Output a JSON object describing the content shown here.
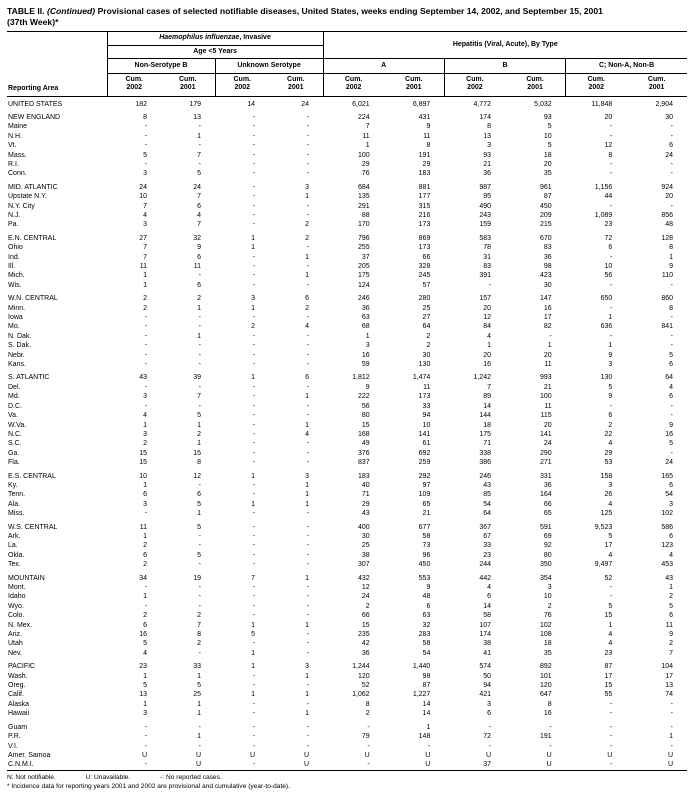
{
  "title": {
    "prefix": "TABLE II.",
    "continued": "(Continued)",
    "rest": "Provisional cases of selected notifiable diseases, United States, weeks ending September 14, 2002, and September 15, 2001",
    "week": "(37th Week)*"
  },
  "header": {
    "reporting_area": "Reporting Area",
    "group1_italic": "Haemophilus influenzae",
    "group1_rest": ", Invasive",
    "group1_sub": "Age <5 Years",
    "group2": "Hepatitis (Viral, Acute), By Type",
    "subgroups": [
      "Non-Serotype B",
      "Unknown Serotype",
      "A",
      "B",
      "C; Non-A, Non-B"
    ],
    "cum_label": "Cum.",
    "years": [
      "2002",
      "2001"
    ]
  },
  "rows": [
    {
      "area": "UNITED STATES",
      "values": [
        "182",
        "179",
        "14",
        "24",
        "6,021",
        "6,897",
        "4,772",
        "5,032",
        "11,848",
        "2,904"
      ]
    },
    {
      "area": "NEW ENGLAND",
      "gap_before": true,
      "values": [
        "8",
        "13",
        "-",
        "-",
        "224",
        "431",
        "174",
        "93",
        "20",
        "30"
      ]
    },
    {
      "area": "Maine",
      "values": [
        "-",
        "-",
        "-",
        "-",
        "7",
        "9",
        "8",
        "5",
        "-",
        "-"
      ]
    },
    {
      "area": "N.H.",
      "values": [
        "-",
        "1",
        "-",
        "-",
        "11",
        "11",
        "13",
        "10",
        "-",
        "-"
      ]
    },
    {
      "area": "Vt.",
      "values": [
        "-",
        "-",
        "-",
        "-",
        "1",
        "8",
        "3",
        "5",
        "12",
        "6"
      ]
    },
    {
      "area": "Mass.",
      "values": [
        "5",
        "7",
        "-",
        "-",
        "100",
        "191",
        "93",
        "18",
        "8",
        "24"
      ]
    },
    {
      "area": "R.I.",
      "values": [
        "-",
        "-",
        "-",
        "-",
        "29",
        "29",
        "21",
        "20",
        "-",
        "-"
      ]
    },
    {
      "area": "Conn.",
      "values": [
        "3",
        "5",
        "-",
        "-",
        "76",
        "183",
        "36",
        "35",
        "-",
        "-"
      ]
    },
    {
      "area": "MID. ATLANTIC",
      "gap_before": true,
      "values": [
        "24",
        "24",
        "-",
        "3",
        "684",
        "881",
        "987",
        "961",
        "1,156",
        "924"
      ]
    },
    {
      "area": "Upstate N.Y.",
      "values": [
        "10",
        "7",
        "-",
        "1",
        "135",
        "177",
        "95",
        "87",
        "44",
        "20"
      ]
    },
    {
      "area": "N.Y. City",
      "values": [
        "7",
        "6",
        "-",
        "-",
        "291",
        "315",
        "490",
        "450",
        "-",
        "-"
      ]
    },
    {
      "area": "N.J.",
      "values": [
        "4",
        "4",
        "-",
        "-",
        "88",
        "216",
        "243",
        "209",
        "1,089",
        "856"
      ]
    },
    {
      "area": "Pa.",
      "values": [
        "3",
        "7",
        "-",
        "2",
        "170",
        "173",
        "159",
        "215",
        "23",
        "48"
      ]
    },
    {
      "area": "E.N. CENTRAL",
      "gap_before": true,
      "values": [
        "27",
        "32",
        "1",
        "2",
        "796",
        "869",
        "583",
        "670",
        "72",
        "128"
      ]
    },
    {
      "area": "Ohio",
      "values": [
        "7",
        "9",
        "1",
        "-",
        "255",
        "173",
        "78",
        "83",
        "6",
        "8"
      ]
    },
    {
      "area": "Ind.",
      "values": [
        "7",
        "6",
        "-",
        "1",
        "37",
        "66",
        "31",
        "36",
        "-",
        "1"
      ]
    },
    {
      "area": "Ill.",
      "values": [
        "11",
        "11",
        "-",
        "-",
        "205",
        "328",
        "83",
        "98",
        "10",
        "9"
      ]
    },
    {
      "area": "Mich.",
      "values": [
        "1",
        "-",
        "-",
        "1",
        "175",
        "245",
        "391",
        "423",
        "56",
        "110"
      ]
    },
    {
      "area": "Wis.",
      "values": [
        "1",
        "6",
        "-",
        "-",
        "124",
        "57",
        "-",
        "30",
        "-",
        "-"
      ]
    },
    {
      "area": "W.N. CENTRAL",
      "gap_before": true,
      "values": [
        "2",
        "2",
        "3",
        "6",
        "246",
        "280",
        "157",
        "147",
        "650",
        "860"
      ]
    },
    {
      "area": "Minn.",
      "values": [
        "2",
        "1",
        "1",
        "2",
        "36",
        "25",
        "20",
        "16",
        "-",
        "8"
      ]
    },
    {
      "area": "Iowa",
      "values": [
        "-",
        "-",
        "-",
        "-",
        "63",
        "27",
        "12",
        "17",
        "1",
        "-"
      ]
    },
    {
      "area": "Mo.",
      "values": [
        "-",
        "-",
        "2",
        "4",
        "68",
        "64",
        "84",
        "82",
        "636",
        "841"
      ]
    },
    {
      "area": "N. Dak.",
      "values": [
        "-",
        "1",
        "-",
        "-",
        "1",
        "2",
        "4",
        "-",
        "-",
        "-"
      ]
    },
    {
      "area": "S. Dak.",
      "values": [
        "-",
        "-",
        "-",
        "-",
        "3",
        "2",
        "1",
        "1",
        "1",
        "-"
      ]
    },
    {
      "area": "Nebr.",
      "values": [
        "-",
        "-",
        "-",
        "-",
        "16",
        "30",
        "20",
        "20",
        "9",
        "5"
      ]
    },
    {
      "area": "Kans.",
      "values": [
        "-",
        "-",
        "-",
        "-",
        "59",
        "130",
        "16",
        "11",
        "3",
        "6"
      ]
    },
    {
      "area": "S. ATLANTIC",
      "gap_before": true,
      "values": [
        "43",
        "39",
        "1",
        "6",
        "1,812",
        "1,474",
        "1,242",
        "993",
        "130",
        "64"
      ]
    },
    {
      "area": "Del.",
      "values": [
        "-",
        "-",
        "-",
        "-",
        "9",
        "11",
        "7",
        "21",
        "5",
        "4"
      ]
    },
    {
      "area": "Md.",
      "values": [
        "3",
        "7",
        "-",
        "1",
        "222",
        "173",
        "89",
        "100",
        "9",
        "6"
      ]
    },
    {
      "area": "D.C.",
      "values": [
        "-",
        "-",
        "-",
        "-",
        "56",
        "33",
        "14",
        "11",
        "-",
        "-"
      ]
    },
    {
      "area": "Va.",
      "values": [
        "4",
        "5",
        "-",
        "-",
        "80",
        "94",
        "144",
        "115",
        "6",
        "-"
      ]
    },
    {
      "area": "W.Va.",
      "values": [
        "1",
        "1",
        "-",
        "1",
        "15",
        "10",
        "18",
        "20",
        "2",
        "9"
      ]
    },
    {
      "area": "N.C.",
      "values": [
        "3",
        "2",
        "-",
        "4",
        "168",
        "141",
        "175",
        "141",
        "22",
        "16"
      ]
    },
    {
      "area": "S.C.",
      "values": [
        "2",
        "1",
        "-",
        "-",
        "49",
        "61",
        "71",
        "24",
        "4",
        "5"
      ]
    },
    {
      "area": "Ga.",
      "values": [
        "15",
        "15",
        "-",
        "-",
        "376",
        "692",
        "338",
        "290",
        "29",
        "-"
      ]
    },
    {
      "area": "Fla.",
      "values": [
        "15",
        "8",
        "-",
        "-",
        "837",
        "259",
        "386",
        "271",
        "53",
        "24"
      ]
    },
    {
      "area": "E.S. CENTRAL",
      "gap_before": true,
      "values": [
        "10",
        "12",
        "1",
        "3",
        "183",
        "292",
        "246",
        "331",
        "158",
        "165"
      ]
    },
    {
      "area": "Ky.",
      "values": [
        "1",
        "-",
        "-",
        "1",
        "40",
        "97",
        "43",
        "36",
        "3",
        "6"
      ]
    },
    {
      "area": "Tenn.",
      "values": [
        "6",
        "6",
        "-",
        "1",
        "71",
        "109",
        "85",
        "164",
        "26",
        "54"
      ]
    },
    {
      "area": "Ala.",
      "values": [
        "3",
        "5",
        "1",
        "1",
        "29",
        "65",
        "54",
        "66",
        "4",
        "3"
      ]
    },
    {
      "area": "Miss.",
      "values": [
        "-",
        "1",
        "-",
        "-",
        "43",
        "21",
        "64",
        "65",
        "125",
        "102"
      ]
    },
    {
      "area": "W.S. CENTRAL",
      "gap_before": true,
      "values": [
        "11",
        "5",
        "-",
        "-",
        "400",
        "677",
        "367",
        "591",
        "9,523",
        "586"
      ]
    },
    {
      "area": "Ark.",
      "values": [
        "1",
        "-",
        "-",
        "-",
        "30",
        "58",
        "67",
        "69",
        "5",
        "6"
      ]
    },
    {
      "area": "La.",
      "values": [
        "2",
        "-",
        "-",
        "-",
        "25",
        "73",
        "33",
        "92",
        "17",
        "123"
      ]
    },
    {
      "area": "Okla.",
      "values": [
        "6",
        "5",
        "-",
        "-",
        "38",
        "96",
        "23",
        "80",
        "4",
        "4"
      ]
    },
    {
      "area": "Tex.",
      "values": [
        "2",
        "-",
        "-",
        "-",
        "307",
        "450",
        "244",
        "350",
        "9,497",
        "453"
      ]
    },
    {
      "area": "MOUNTAIN",
      "gap_before": true,
      "values": [
        "34",
        "19",
        "7",
        "1",
        "432",
        "553",
        "442",
        "354",
        "52",
        "43"
      ]
    },
    {
      "area": "Mont.",
      "values": [
        "-",
        "-",
        "-",
        "-",
        "12",
        "9",
        "4",
        "3",
        "-",
        "1"
      ]
    },
    {
      "area": "Idaho",
      "values": [
        "1",
        "-",
        "-",
        "-",
        "24",
        "48",
        "6",
        "10",
        "-",
        "2"
      ]
    },
    {
      "area": "Wyo.",
      "values": [
        "-",
        "-",
        "-",
        "-",
        "2",
        "6",
        "14",
        "2",
        "5",
        "5"
      ]
    },
    {
      "area": "Colo.",
      "values": [
        "2",
        "2",
        "-",
        "-",
        "66",
        "63",
        "58",
        "76",
        "15",
        "6"
      ]
    },
    {
      "area": "N. Mex.",
      "values": [
        "6",
        "7",
        "1",
        "1",
        "15",
        "32",
        "107",
        "102",
        "1",
        "11"
      ]
    },
    {
      "area": "Ariz.",
      "values": [
        "16",
        "8",
        "5",
        "-",
        "235",
        "283",
        "174",
        "108",
        "4",
        "9"
      ]
    },
    {
      "area": "Utah",
      "values": [
        "5",
        "2",
        "-",
        "-",
        "42",
        "58",
        "38",
        "18",
        "4",
        "2"
      ]
    },
    {
      "area": "Nev.",
      "values": [
        "4",
        "-",
        "1",
        "-",
        "36",
        "54",
        "41",
        "35",
        "23",
        "7"
      ]
    },
    {
      "area": "PACIFIC",
      "gap_before": true,
      "values": [
        "23",
        "33",
        "1",
        "3",
        "1,244",
        "1,440",
        "574",
        "892",
        "87",
        "104"
      ]
    },
    {
      "area": "Wash.",
      "values": [
        "1",
        "1",
        "-",
        "1",
        "120",
        "98",
        "50",
        "101",
        "17",
        "17"
      ]
    },
    {
      "area": "Oreg.",
      "values": [
        "5",
        "5",
        "-",
        "-",
        "52",
        "87",
        "94",
        "120",
        "15",
        "13"
      ]
    },
    {
      "area": "Calif.",
      "values": [
        "13",
        "25",
        "1",
        "1",
        "1,062",
        "1,227",
        "421",
        "647",
        "55",
        "74"
      ]
    },
    {
      "area": "Alaska",
      "values": [
        "1",
        "1",
        "-",
        "-",
        "8",
        "14",
        "3",
        "8",
        "-",
        "-"
      ]
    },
    {
      "area": "Hawaii",
      "values": [
        "3",
        "1",
        "-",
        "1",
        "2",
        "14",
        "6",
        "16",
        "-",
        "-"
      ]
    },
    {
      "area": "Guam",
      "gap_before": true,
      "values": [
        "-",
        "-",
        "-",
        "-",
        "-",
        "1",
        "-",
        "-",
        "-",
        "-"
      ]
    },
    {
      "area": "P.R.",
      "values": [
        "-",
        "1",
        "-",
        "-",
        "79",
        "148",
        "72",
        "191",
        "-",
        "1"
      ]
    },
    {
      "area": "V.I.",
      "values": [
        "-",
        "-",
        "-",
        "-",
        "-",
        "-",
        "-",
        "-",
        "-",
        "-"
      ]
    },
    {
      "area": "Amer. Samoa",
      "values": [
        "U",
        "U",
        "U",
        "U",
        "U",
        "U",
        "U",
        "U",
        "U",
        "U"
      ]
    },
    {
      "area": "C.N.M.I.",
      "values": [
        "-",
        "U",
        "-",
        "U",
        "-",
        "U",
        "37",
        "U",
        "-",
        "U"
      ]
    }
  ],
  "footnotes": {
    "legend": [
      "N: Not notifiable.",
      "U: Unavailable.",
      "-: No reported cases."
    ],
    "note": "* Incidence data for reporting years 2001 and 2002 are provisional and cumulative (year-to-date)."
  }
}
